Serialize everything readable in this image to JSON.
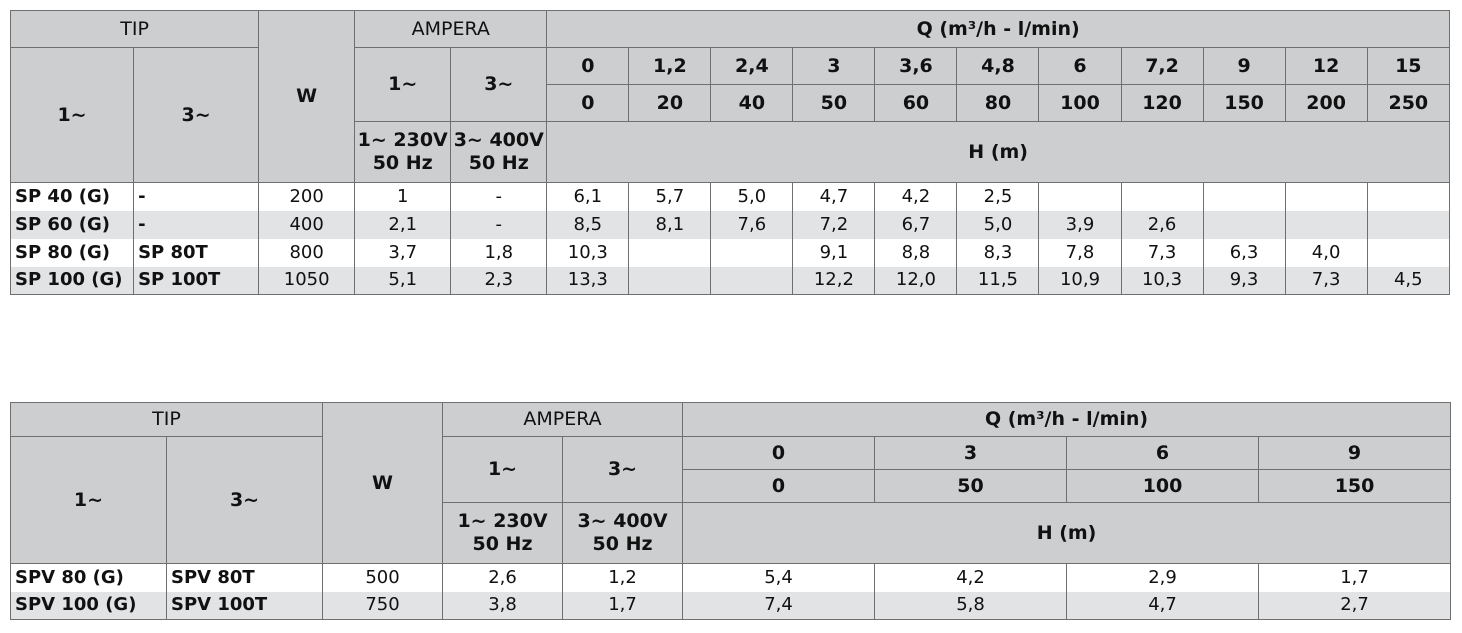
{
  "tables": [
    {
      "header": {
        "tip": "TIP",
        "one_phase": "1~",
        "three_phase": "3~",
        "w": "W",
        "ampera": "AMPERA",
        "amp_1": "1~",
        "amp_3": "3~",
        "amp_1_note": "1~ 230V\n50 Hz",
        "amp_3_note": "3~ 400V\n50 Hz",
        "q": "Q (m³/h - l/min)",
        "q_m3h": [
          "0",
          "1,2",
          "2,4",
          "3",
          "3,6",
          "4,8",
          "6",
          "7,2",
          "9",
          "12",
          "15"
        ],
        "q_lmin": [
          "0",
          "20",
          "40",
          "50",
          "60",
          "80",
          "100",
          "120",
          "150",
          "200",
          "250"
        ],
        "h": "H (m)"
      },
      "rows": [
        [
          "SP 40 (G)",
          "-",
          "200",
          "1",
          "-",
          "6,1",
          "5,7",
          "5,0",
          "4,7",
          "4,2",
          "2,5",
          null,
          null,
          null,
          null,
          null
        ],
        [
          "SP 60 (G)",
          "-",
          "400",
          "2,1",
          "-",
          "8,5",
          "8,1",
          "7,6",
          "7,2",
          "6,7",
          "5,0",
          "3,9",
          "2,6",
          null,
          null,
          null
        ],
        [
          "SP 80 (G)",
          "SP 80T",
          "800",
          "3,7",
          "1,8",
          "10,3",
          null,
          null,
          "9,1",
          "8,8",
          "8,3",
          "7,8",
          "7,3",
          "6,3",
          "4,0",
          null
        ],
        [
          "SP 100 (G)",
          "SP 100T",
          "1050",
          "5,1",
          "2,3",
          "13,3",
          null,
          null,
          "12,2",
          "12,0",
          "11,5",
          "10,9",
          "10,3",
          "9,3",
          "7,3",
          "4,5"
        ]
      ]
    },
    {
      "header": {
        "tip": "TIP",
        "one_phase": "1~",
        "three_phase": "3~",
        "w": "W",
        "ampera": "AMPERA",
        "amp_1": "1~",
        "amp_3": "3~",
        "amp_1_note": "1~ 230V\n50 Hz",
        "amp_3_note": "3~ 400V\n50 Hz",
        "q": "Q (m³/h - l/min)",
        "q_m3h": [
          "0",
          "3",
          "6",
          "9"
        ],
        "q_lmin": [
          "0",
          "50",
          "100",
          "150"
        ],
        "h": "H (m)"
      },
      "rows": [
        [
          "SPV 80 (G)",
          "SPV 80T",
          "500",
          "2,6",
          "1,2",
          "5,4",
          "4,2",
          "2,9",
          "1,7"
        ],
        [
          "SPV 100 (G)",
          "SPV 100T",
          "750",
          "3,8",
          "1,7",
          "7,4",
          "5,8",
          "4,7",
          "2,7"
        ]
      ]
    }
  ]
}
